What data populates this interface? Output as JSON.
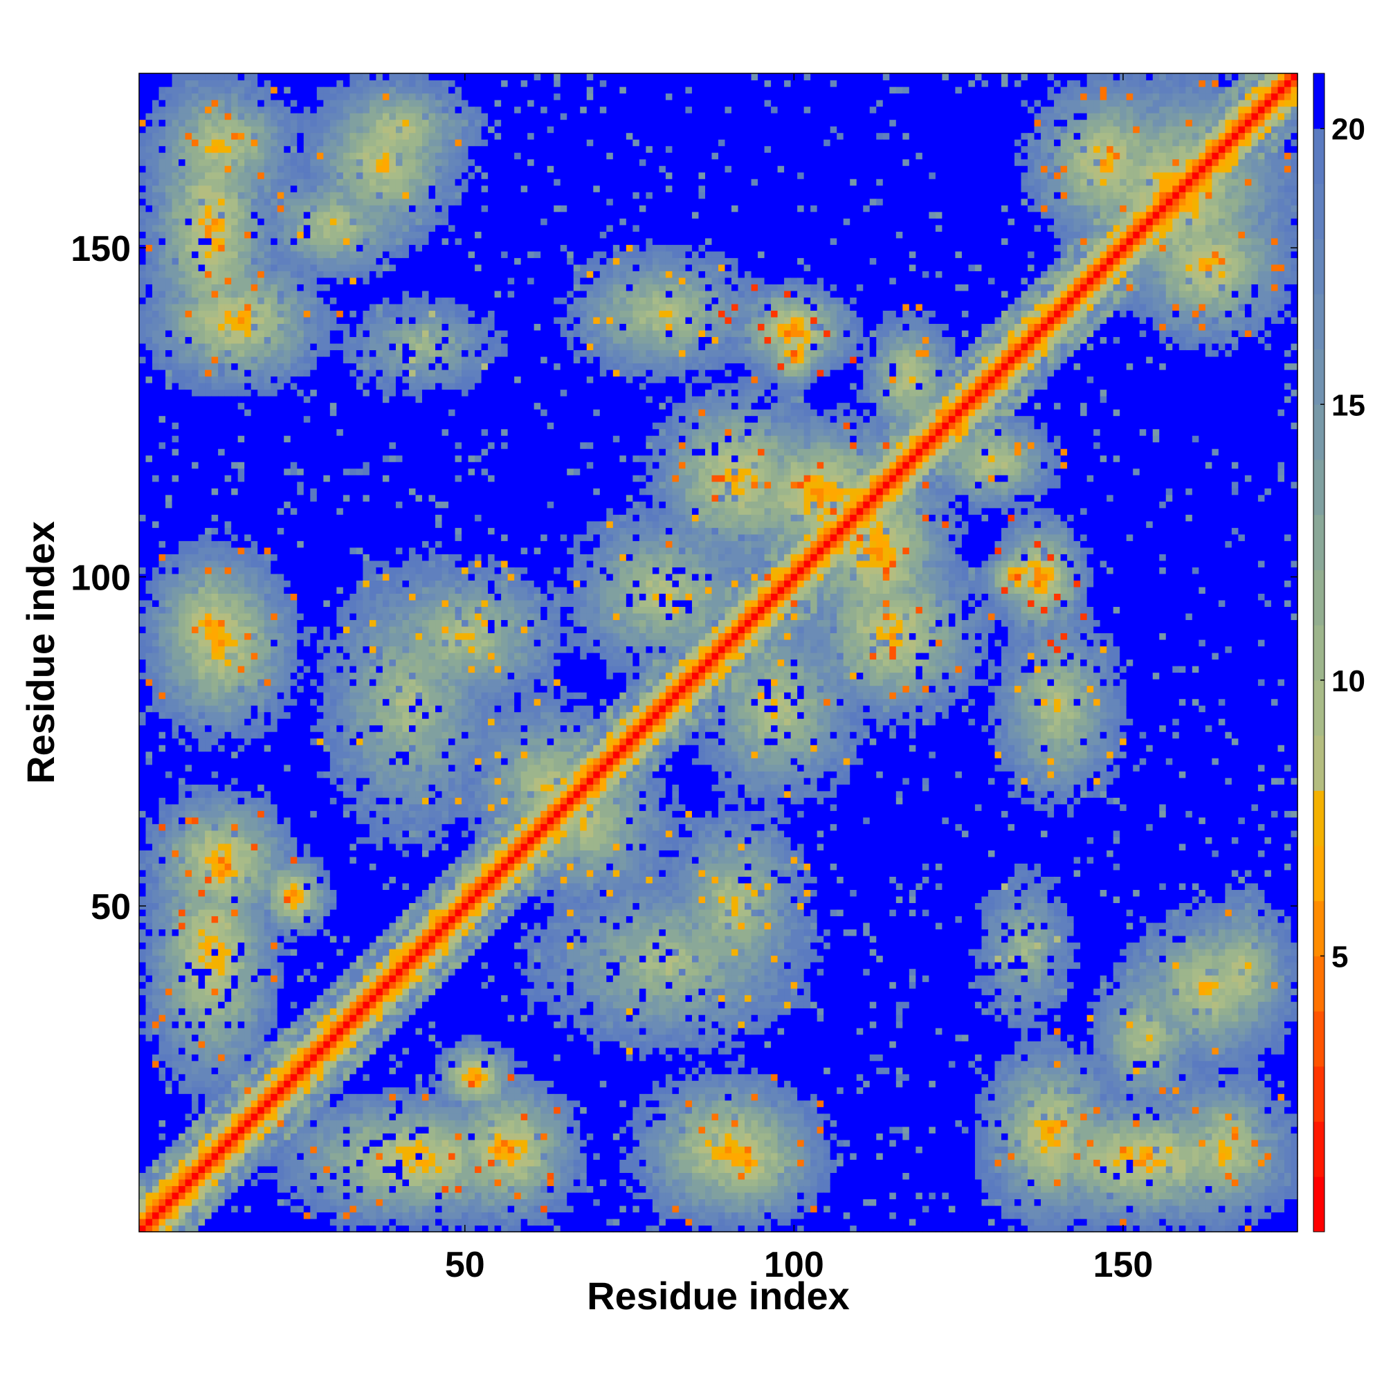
{
  "chart_data": {
    "type": "heatmap",
    "title": "",
    "xlabel": "Residue index",
    "ylabel": "Residue index",
    "n_residues": 176,
    "xlim": [
      1,
      176
    ],
    "ylim": [
      1,
      176
    ],
    "x_ticks": [
      {
        "value": 50,
        "label": "50"
      },
      {
        "value": 100,
        "label": "100"
      },
      {
        "value": 150,
        "label": "150"
      }
    ],
    "y_ticks": [
      {
        "value": 50,
        "label": "50"
      },
      {
        "value": 100,
        "label": "100"
      },
      {
        "value": 150,
        "label": "150"
      }
    ],
    "colorbar": {
      "range": [
        0,
        21
      ],
      "ticks": [
        {
          "value": 5,
          "label": "5"
        },
        {
          "value": 10,
          "label": "10"
        },
        {
          "value": 15,
          "label": "15"
        },
        {
          "value": 20,
          "label": "20"
        }
      ],
      "levels": [
        {
          "upper": 1,
          "color": "#ff0000"
        },
        {
          "upper": 2,
          "color": "#ff1800"
        },
        {
          "upper": 3,
          "color": "#ff3600"
        },
        {
          "upper": 4,
          "color": "#ff5400"
        },
        {
          "upper": 5,
          "color": "#ff7200"
        },
        {
          "upper": 6,
          "color": "#ff8c00"
        },
        {
          "upper": 7,
          "color": "#ffa800"
        },
        {
          "upper": 8,
          "color": "#f4b100"
        },
        {
          "upper": 9,
          "color": "#b4bd80"
        },
        {
          "upper": 10,
          "color": "#a8bb88"
        },
        {
          "upper": 11,
          "color": "#9db58c"
        },
        {
          "upper": 12,
          "color": "#93ae90"
        },
        {
          "upper": 13,
          "color": "#8aa898"
        },
        {
          "upper": 14,
          "color": "#80a0a0"
        },
        {
          "upper": 15,
          "color": "#7899a8"
        },
        {
          "upper": 16,
          "color": "#7192b0"
        },
        {
          "upper": 17,
          "color": "#6b8cb6"
        },
        {
          "upper": 18,
          "color": "#6586ba"
        },
        {
          "upper": 19,
          "color": "#6080be"
        },
        {
          "upper": 20,
          "color": "#5b7bc0"
        },
        {
          "upper": 21,
          "color": "#0000ff"
        }
      ]
    },
    "value_meaning": "pairwise inter-residue distance (contact map); diagonal ~0, background >=20",
    "contact_regions": [
      {
        "x": [
          1,
          176
        ],
        "y": [
          1,
          176
        ],
        "type": "diagonal"
      },
      {
        "x": [
          1,
          22
        ],
        "y": [
          130,
          176
        ],
        "min_value": 6
      },
      {
        "x": [
          28,
          52
        ],
        "y": [
          160,
          176
        ],
        "min_value": 7
      },
      {
        "x": [
          18,
          42
        ],
        "y": [
          145,
          162
        ],
        "min_value": 8
      },
      {
        "x": [
          32,
          55
        ],
        "y": [
          128,
          142
        ],
        "min_value": 10
      },
      {
        "x": [
          1,
          25
        ],
        "y": [
          133,
          145
        ],
        "min_value": 7
      },
      {
        "x": [
          1,
          22
        ],
        "y": [
          80,
          105
        ],
        "min_value": 6
      },
      {
        "x": [
          1,
          22
        ],
        "y": [
          20,
          65
        ],
        "min_value": 6
      },
      {
        "x": [
          18,
          30
        ],
        "y": [
          45,
          58
        ],
        "min_value": 4
      },
      {
        "x": [
          45,
          68
        ],
        "y": [
          1,
          25
        ],
        "min_value": 5
      },
      {
        "x": [
          28,
          55
        ],
        "y": [
          60,
          102
        ],
        "min_value": 9
      },
      {
        "x": [
          55,
          82
        ],
        "y": [
          50,
          75
        ],
        "min_value": 8
      },
      {
        "x": [
          80,
          102
        ],
        "y": [
          35,
          65
        ],
        "min_value": 8
      },
      {
        "x": [
          75,
          105
        ],
        "y": [
          1,
          25
        ],
        "min_value": 6
      },
      {
        "x": [
          128,
          150
        ],
        "y": [
          1,
          30
        ],
        "min_value": 6
      },
      {
        "x": [
          155,
          176
        ],
        "y": [
          1,
          25
        ],
        "min_value": 7
      },
      {
        "x": [
          150,
          176
        ],
        "y": [
          25,
          50
        ],
        "min_value": 7
      },
      {
        "x": [
          78,
          105
        ],
        "y": [
          100,
          130
        ],
        "min_value": 6
      },
      {
        "x": [
          90,
          110
        ],
        "y": [
          130,
          145
        ],
        "min_value": 4
      },
      {
        "x": [
          100,
          125
        ],
        "y": [
          88,
          120
        ],
        "min_value": 5
      },
      {
        "x": [
          128,
          140
        ],
        "y": [
          95,
          105
        ],
        "min_value": 4
      },
      {
        "x": [
          120,
          140
        ],
        "y": [
          110,
          125
        ],
        "min_value": 7
      },
      {
        "x": [
          140,
          176
        ],
        "y": [
          140,
          176
        ],
        "min_value": 6
      },
      {
        "x": [
          150,
          176
        ],
        "y": [
          135,
          160
        ],
        "min_value": 6
      },
      {
        "x": [
          130,
          150
        ],
        "y": [
          65,
          95
        ],
        "min_value": 8
      },
      {
        "x": [
          85,
          110
        ],
        "y": [
          65,
          95
        ],
        "min_value": 8
      }
    ]
  }
}
